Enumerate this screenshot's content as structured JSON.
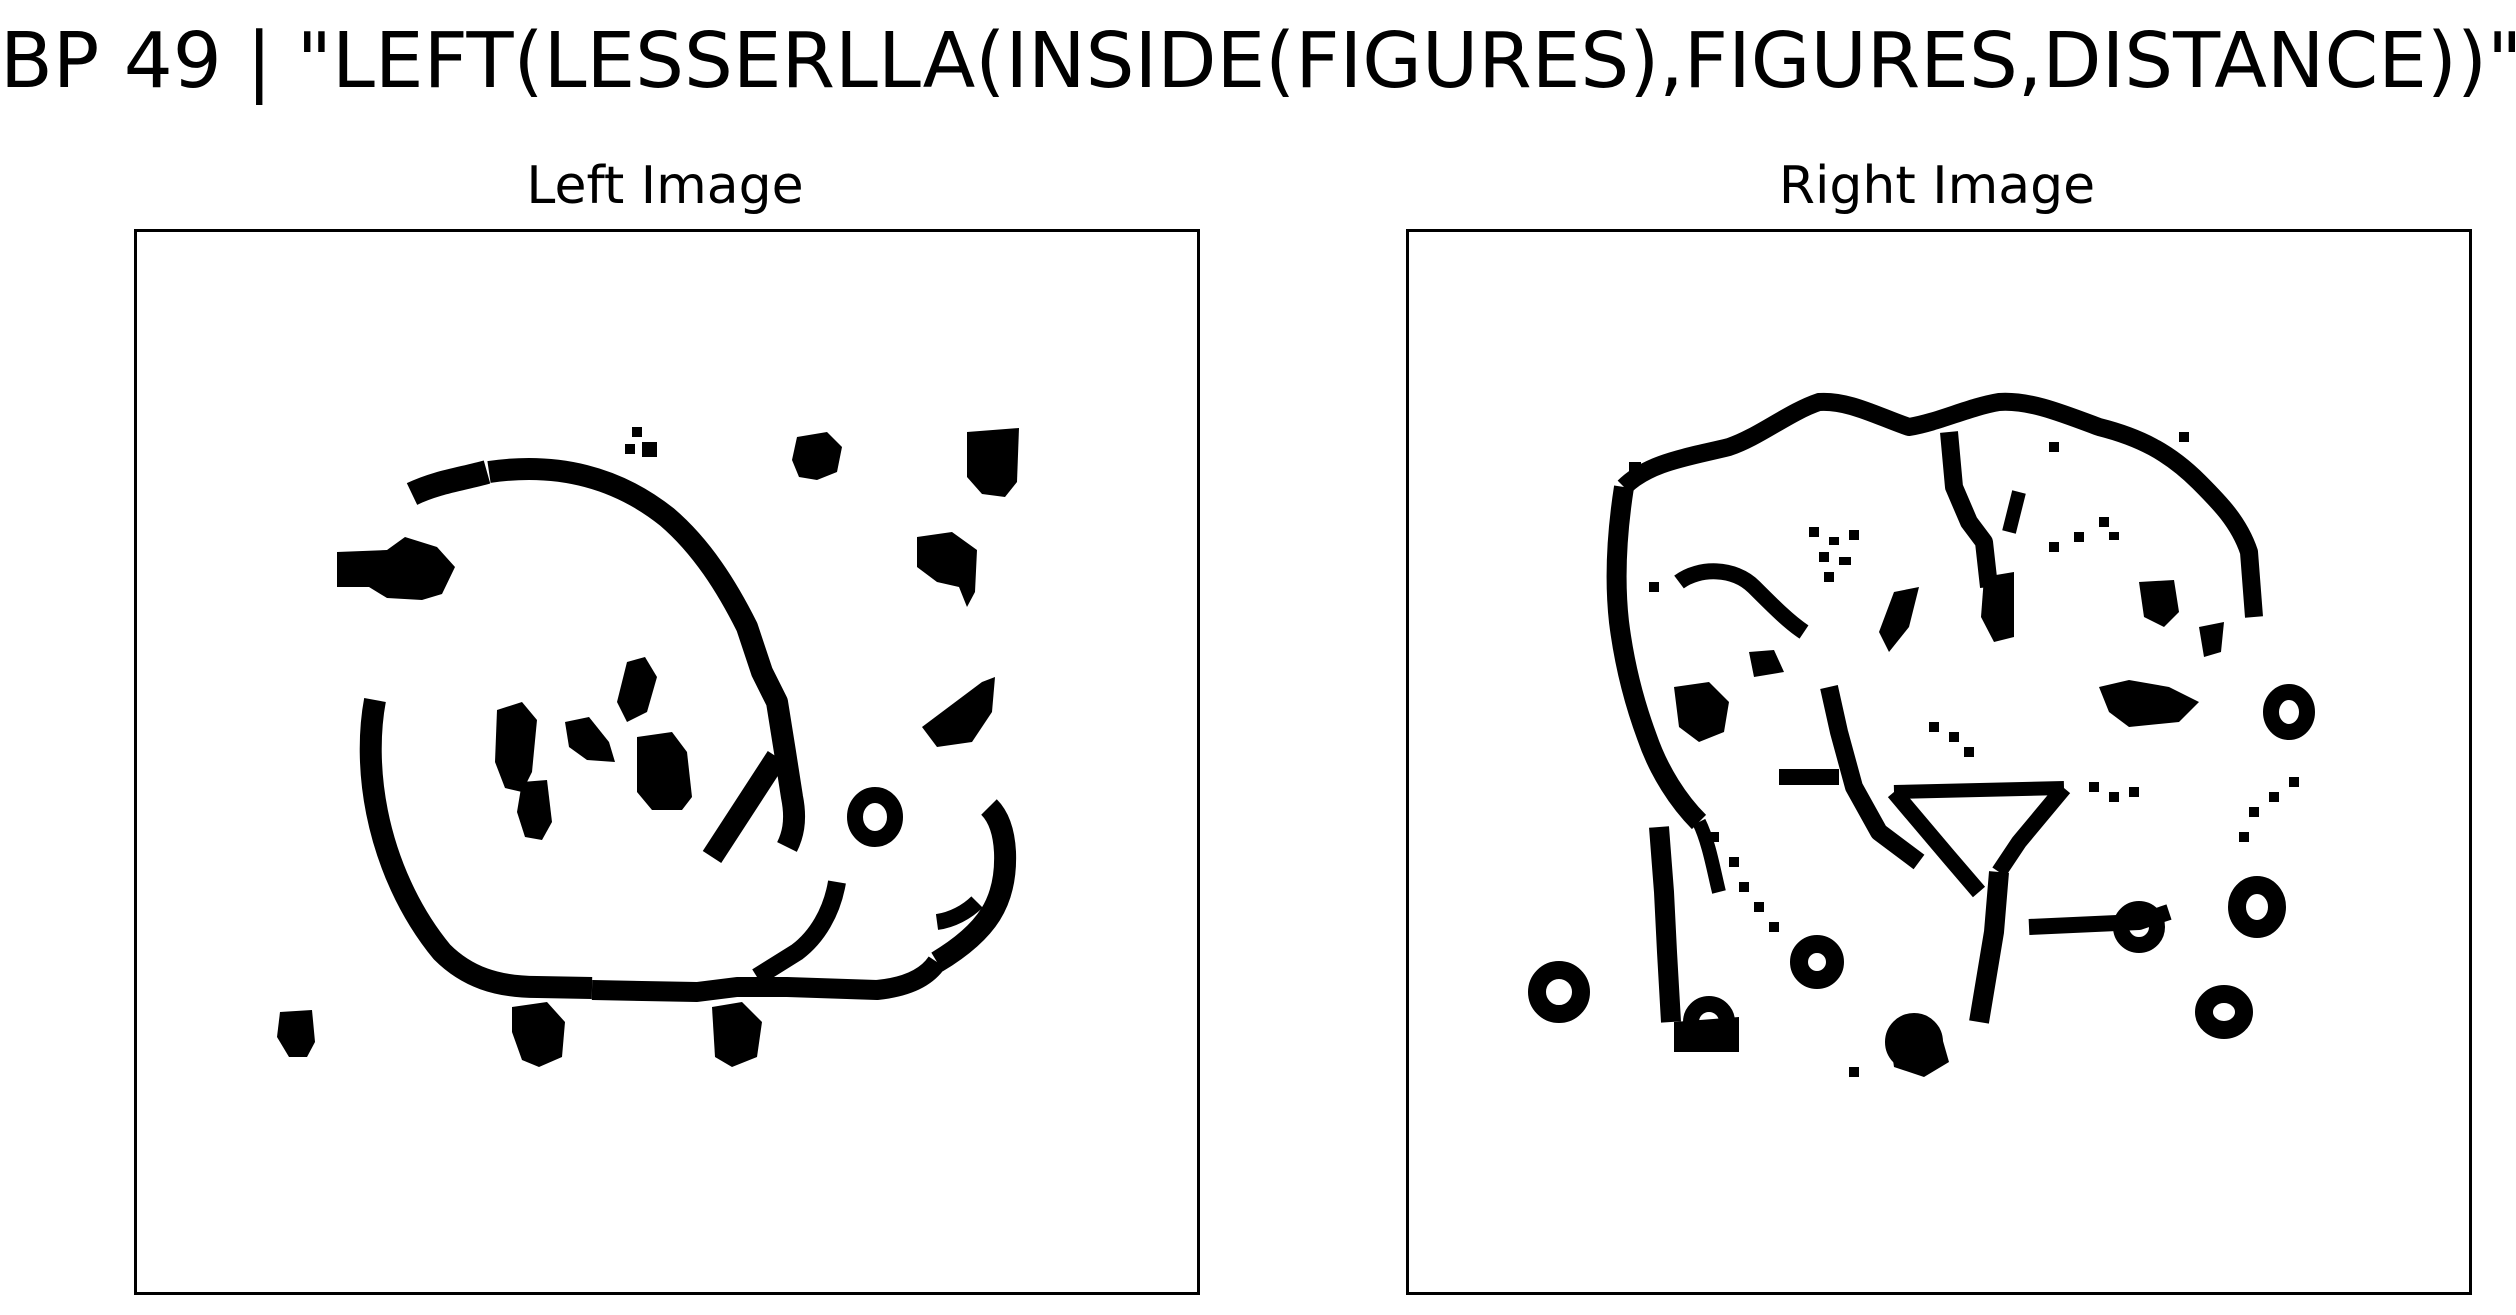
{
  "figure": {
    "title": "BP 49 | \"LEFT(LESSERLLA(INSIDE(FIGURES),FIGURES,DISTANCE))\""
  },
  "panels": {
    "left": {
      "title": "Left Image"
    },
    "right": {
      "title": "Right Image"
    }
  },
  "colors": {
    "ink": "#000000",
    "background": "#ffffff"
  }
}
